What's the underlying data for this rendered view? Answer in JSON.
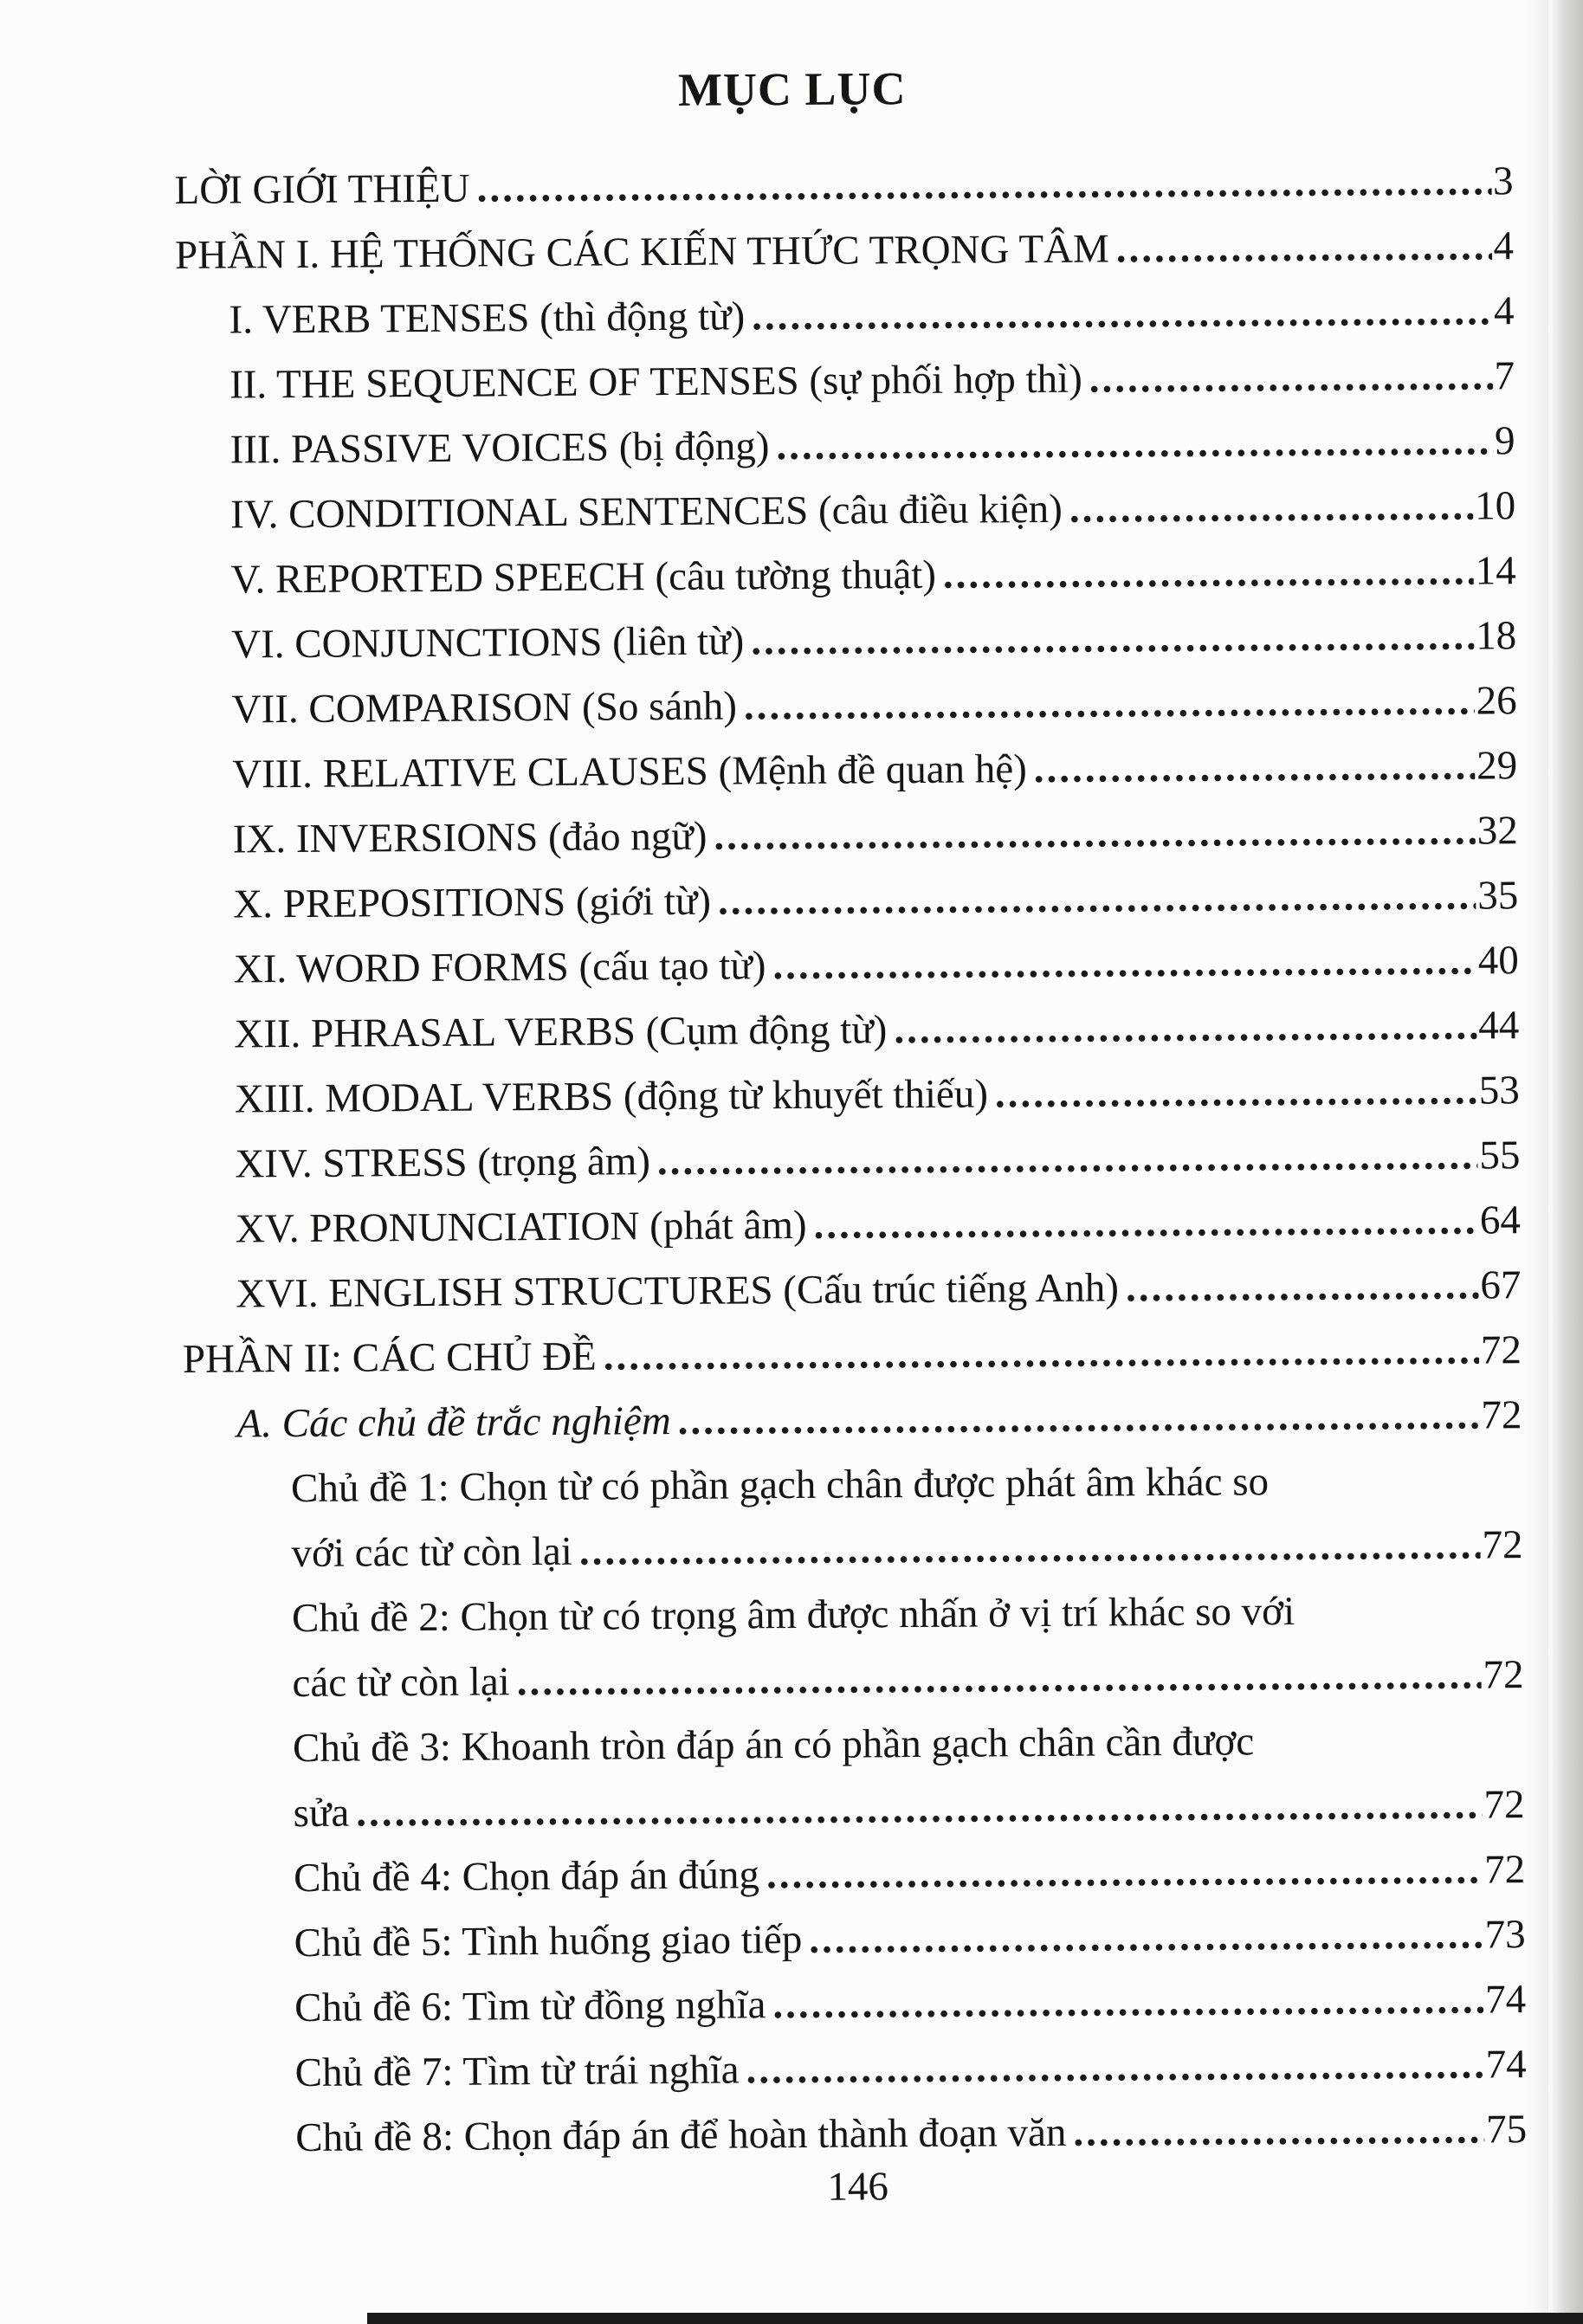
{
  "page": {
    "title": "MỤC LỤC",
    "footer_page_number": "146"
  },
  "toc": {
    "entries": [
      {
        "indent": 0,
        "italic": false,
        "lines": [
          "LỜI GIỚI THIỆU"
        ],
        "page": "3"
      },
      {
        "indent": 0,
        "italic": false,
        "lines": [
          "PHẦN I. HỆ THỐNG CÁC KIẾN THỨC TRỌNG TÂM"
        ],
        "page": "4"
      },
      {
        "indent": 1,
        "italic": false,
        "lines": [
          "I. VERB TENSES (thì động từ)"
        ],
        "page": "4"
      },
      {
        "indent": 1,
        "italic": false,
        "lines": [
          "II. THE SEQUENCE OF TENSES (sự phối hợp thì)"
        ],
        "page": "7"
      },
      {
        "indent": 1,
        "italic": false,
        "lines": [
          "III. PASSIVE VOICES (bị động)"
        ],
        "page": "9"
      },
      {
        "indent": 1,
        "italic": false,
        "lines": [
          "IV. CONDITIONAL SENTENCES (câu điều kiện)"
        ],
        "page": "10"
      },
      {
        "indent": 1,
        "italic": false,
        "lines": [
          "V. REPORTED SPEECH (câu tường thuật)"
        ],
        "page": "14"
      },
      {
        "indent": 1,
        "italic": false,
        "lines": [
          "VI. CONJUNCTIONS (liên từ)"
        ],
        "page": "18"
      },
      {
        "indent": 1,
        "italic": false,
        "lines": [
          "VII. COMPARISON (So sánh)"
        ],
        "page": "26"
      },
      {
        "indent": 1,
        "italic": false,
        "lines": [
          "VIII. RELATIVE CLAUSES (Mệnh đề quan hệ)"
        ],
        "page": "29"
      },
      {
        "indent": 1,
        "italic": false,
        "lines": [
          "IX. INVERSIONS (đảo ngữ)"
        ],
        "page": "32"
      },
      {
        "indent": 1,
        "italic": false,
        "lines": [
          "X. PREPOSITIONS (giới từ)"
        ],
        "page": "35"
      },
      {
        "indent": 1,
        "italic": false,
        "lines": [
          "XI. WORD FORMS (cấu tạo từ)"
        ],
        "page": "40"
      },
      {
        "indent": 1,
        "italic": false,
        "lines": [
          "XII. PHRASAL VERBS (Cụm động từ)"
        ],
        "page": "44"
      },
      {
        "indent": 1,
        "italic": false,
        "lines": [
          "XIII. MODAL VERBS (động từ khuyết thiếu)"
        ],
        "page": "53"
      },
      {
        "indent": 1,
        "italic": false,
        "lines": [
          "XIV. STRESS (trọng âm)"
        ],
        "page": "55"
      },
      {
        "indent": 1,
        "italic": false,
        "lines": [
          "XV. PRONUNCIATION (phát âm)"
        ],
        "page": "64"
      },
      {
        "indent": 1,
        "italic": false,
        "lines": [
          "XVI. ENGLISH STRUCTURES (Cấu trúc tiếng Anh)"
        ],
        "page": "67"
      },
      {
        "indent": 0,
        "italic": false,
        "lines": [
          "PHẦN II: CÁC CHỦ ĐỀ"
        ],
        "page": "72"
      },
      {
        "indent": 1,
        "italic": true,
        "lines": [
          "A. Các chủ đề trắc nghiệm"
        ],
        "page": "72"
      },
      {
        "indent": 2,
        "italic": false,
        "lines": [
          "Chủ đề 1: Chọn từ có phần gạch chân được phát âm khác so",
          "với các từ còn lại"
        ],
        "page": "72"
      },
      {
        "indent": 2,
        "italic": false,
        "lines": [
          "Chủ đề 2: Chọn từ có trọng âm được nhấn ở vị trí khác so với",
          "các từ còn lại"
        ],
        "page": "72"
      },
      {
        "indent": 2,
        "italic": false,
        "lines": [
          "Chủ đề 3: Khoanh tròn đáp án có phần gạch chân cần được",
          "sửa"
        ],
        "page": "72"
      },
      {
        "indent": 2,
        "italic": false,
        "lines": [
          "Chủ đề 4: Chọn đáp án đúng"
        ],
        "page": "72"
      },
      {
        "indent": 2,
        "italic": false,
        "lines": [
          "Chủ đề 5: Tình huống giao tiếp"
        ],
        "page": "73"
      },
      {
        "indent": 2,
        "italic": false,
        "lines": [
          "Chủ đề 6: Tìm từ đồng nghĩa"
        ],
        "page": "74"
      },
      {
        "indent": 2,
        "italic": false,
        "lines": [
          "Chủ đề 7: Tìm từ trái nghĩa"
        ],
        "page": "74"
      },
      {
        "indent": 2,
        "italic": false,
        "lines": [
          "Chủ đề 8: Chọn đáp án để hoàn thành đoạn văn"
        ],
        "page": "75"
      }
    ]
  }
}
